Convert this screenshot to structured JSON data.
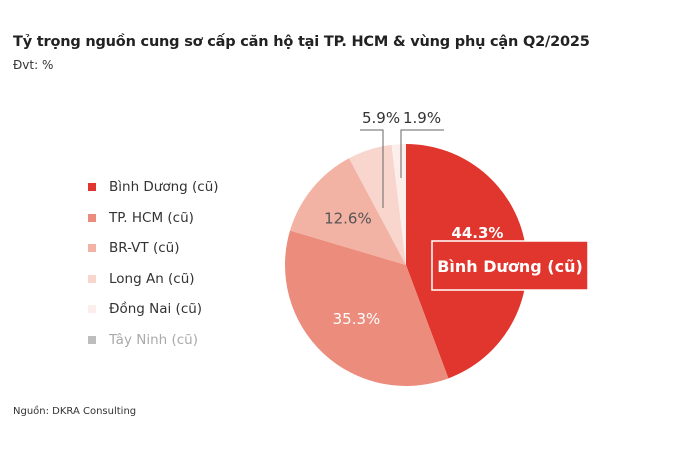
{
  "title": "Tỷ trọng nguồn cung sơ cấp căn hộ tại TP. HCM & vùng phụ cận Q2/2025",
  "unit": "Đvt: %",
  "source": "Nguồn: DKRA Consulting",
  "chart_data": {
    "type": "pie",
    "title": "Tỷ trọng nguồn cung sơ cấp căn hộ tại TP. HCM & vùng phụ cận Q2/2025",
    "categories": [
      "Bình Dương (cũ)",
      "TP. HCM (cũ)",
      "BR-VT (cũ)",
      "Long An (cũ)",
      "Đồng Nai (cũ)",
      "Tây Ninh (cũ)"
    ],
    "values": [
      44.3,
      35.3,
      12.6,
      5.9,
      1.9,
      0
    ],
    "labels": [
      "44.3%",
      "35.3%",
      "12.6%",
      "5.9%",
      "1.9%",
      ""
    ],
    "colors": [
      "#e0362d",
      "#ec8c7c",
      "#f2b2a4",
      "#f8d5cd",
      "#fcefeb",
      "#bdbdbd"
    ],
    "legend_position": "left",
    "callout": "Bình Dương (cũ)"
  }
}
